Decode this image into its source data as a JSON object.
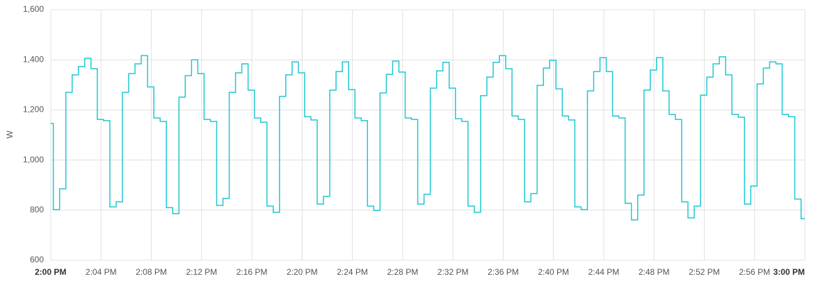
{
  "chart_data": {
    "type": "line",
    "step": true,
    "y_label": "W",
    "x": [
      0,
      0.2,
      0.7,
      1.2,
      1.7,
      2.2,
      2.7,
      3.2,
      3.7,
      4.2,
      4.7,
      5.2,
      5.7,
      6.2,
      6.7,
      7.2,
      7.7,
      8.2,
      8.7,
      9.2,
      9.7,
      10.2,
      10.7,
      11.2,
      11.7,
      12.2,
      12.7,
      13.2,
      13.7,
      14.2,
      14.7,
      15.2,
      15.7,
      16.2,
      16.7,
      17.2,
      17.7,
      18.2,
      18.7,
      19.2,
      19.7,
      20.2,
      20.7,
      21.2,
      21.7,
      22.2,
      22.7,
      23.2,
      23.7,
      24.2,
      24.7,
      25.2,
      25.7,
      26.2,
      26.7,
      27.2,
      27.7,
      28.2,
      28.7,
      29.2,
      29.7,
      30.2,
      30.7,
      31.2,
      31.7,
      32.2,
      32.7,
      33.2,
      33.7,
      34.2,
      34.7,
      35.2,
      35.7,
      36.2,
      36.7,
      37.2,
      37.7,
      38.2,
      38.7,
      39.2,
      39.7,
      40.2,
      40.7,
      41.2,
      41.7,
      42.2,
      42.7,
      43.2,
      43.7,
      44.2,
      44.7,
      45.2,
      45.7,
      46.2,
      46.7,
      47.2,
      47.7,
      48.2,
      48.7,
      49.2,
      49.7,
      50.2,
      50.7,
      51.2,
      51.7,
      52.2,
      52.7,
      53.2,
      53.7,
      54.2,
      54.7,
      55.2,
      55.7,
      56.2,
      56.7,
      57.2,
      57.7,
      58.2,
      58.7,
      59.2,
      59.7
    ],
    "series": [
      {
        "color": "#1ec8d2",
        "values": [
          1146,
          802,
          885,
          1270,
          1340,
          1373,
          1406,
          1365,
          1162,
          1157,
          813,
          833,
          1270,
          1345,
          1384,
          1417,
          1292,
          1168,
          1154,
          810,
          786,
          1251,
          1337,
          1400,
          1345,
          1162,
          1154,
          819,
          847,
          1270,
          1348,
          1384,
          1279,
          1168,
          1151,
          816,
          791,
          1254,
          1340,
          1392,
          1348,
          1173,
          1160,
          824,
          855,
          1279,
          1353,
          1392,
          1281,
          1168,
          1157,
          816,
          799,
          1268,
          1342,
          1395,
          1351,
          1168,
          1162,
          824,
          863,
          1287,
          1356,
          1390,
          1287,
          1165,
          1154,
          816,
          791,
          1257,
          1331,
          1390,
          1417,
          1365,
          1176,
          1162,
          833,
          866,
          1298,
          1367,
          1398,
          1284,
          1176,
          1160,
          813,
          802,
          1276,
          1353,
          1409,
          1353,
          1176,
          1168,
          827,
          761,
          860,
          1279,
          1359,
          1409,
          1276,
          1182,
          1162,
          833,
          769,
          816,
          1259,
          1331,
          1384,
          1412,
          1340,
          1182,
          1171,
          824,
          896,
          1304,
          1367,
          1392,
          1384,
          1182,
          1173,
          844,
          766
        ]
      }
    ],
    "xlim": [
      0,
      60
    ],
    "xticks": [
      {
        "value": 0,
        "label": "2:00 PM"
      },
      {
        "value": 4,
        "label": "2:04 PM"
      },
      {
        "value": 8,
        "label": "2:08 PM"
      },
      {
        "value": 12,
        "label": "2:12 PM"
      },
      {
        "value": 16,
        "label": "2:16 PM"
      },
      {
        "value": 20,
        "label": "2:20 PM"
      },
      {
        "value": 24,
        "label": "2:24 PM"
      },
      {
        "value": 28,
        "label": "2:28 PM"
      },
      {
        "value": 32,
        "label": "2:32 PM"
      },
      {
        "value": 36,
        "label": "2:36 PM"
      },
      {
        "value": 40,
        "label": "2:40 PM"
      },
      {
        "value": 44,
        "label": "2:44 PM"
      },
      {
        "value": 48,
        "label": "2:48 PM"
      },
      {
        "value": 52,
        "label": "2:52 PM"
      },
      {
        "value": 56,
        "label": "2:56 PM"
      },
      {
        "value": 60,
        "label": "3:00 PM"
      }
    ],
    "ylim": [
      600,
      1600
    ],
    "yticks": [
      600,
      800,
      {
        "value": 1000,
        "label": "1,000"
      },
      {
        "value": 1200,
        "label": "1,200"
      },
      {
        "value": 1400,
        "label": "1,400"
      },
      {
        "value": 1600,
        "label": "1,600"
      }
    ],
    "grid": true
  }
}
